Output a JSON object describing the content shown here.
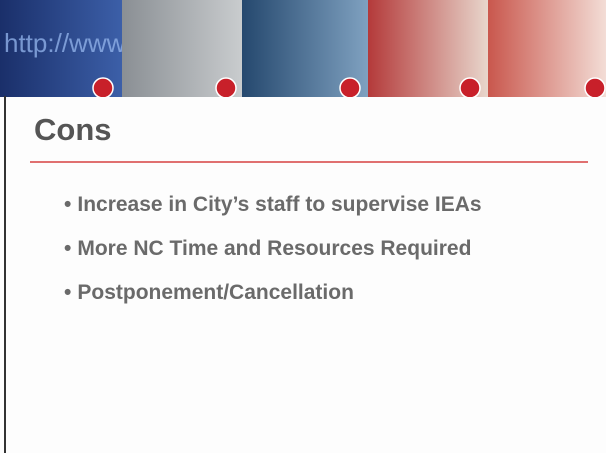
{
  "banner": {
    "text": "http://www"
  },
  "title": "Cons",
  "bullets": [
    "Increase in City’s staff to supervise IEAs",
    "More NC Time and Resources Required",
    "Postponement/Cancellation"
  ]
}
